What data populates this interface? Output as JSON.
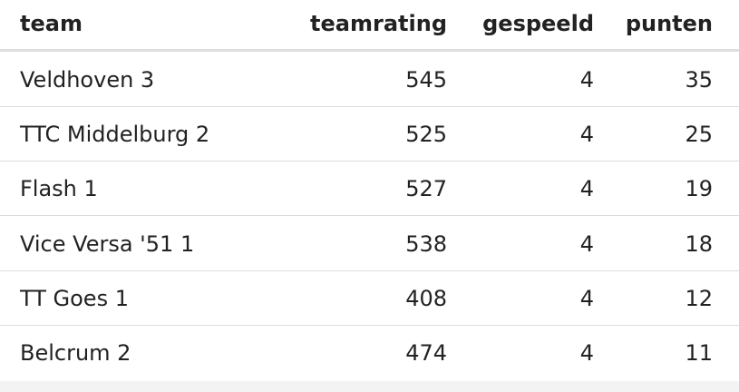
{
  "table": {
    "header": [
      "team",
      "teamrating",
      "gespeeld",
      "punten"
    ],
    "rows": [
      [
        "Veldhoven 3",
        545,
        4,
        35
      ],
      [
        "TTC Middelburg 2",
        525,
        4,
        25
      ],
      [
        "Flash 1",
        527,
        4,
        19
      ],
      [
        "Vice Versa '51 1",
        538,
        4,
        18
      ],
      [
        "TT Goes 1",
        408,
        4,
        12
      ],
      [
        "Belcrum 2",
        474,
        4,
        11
      ]
    ]
  }
}
